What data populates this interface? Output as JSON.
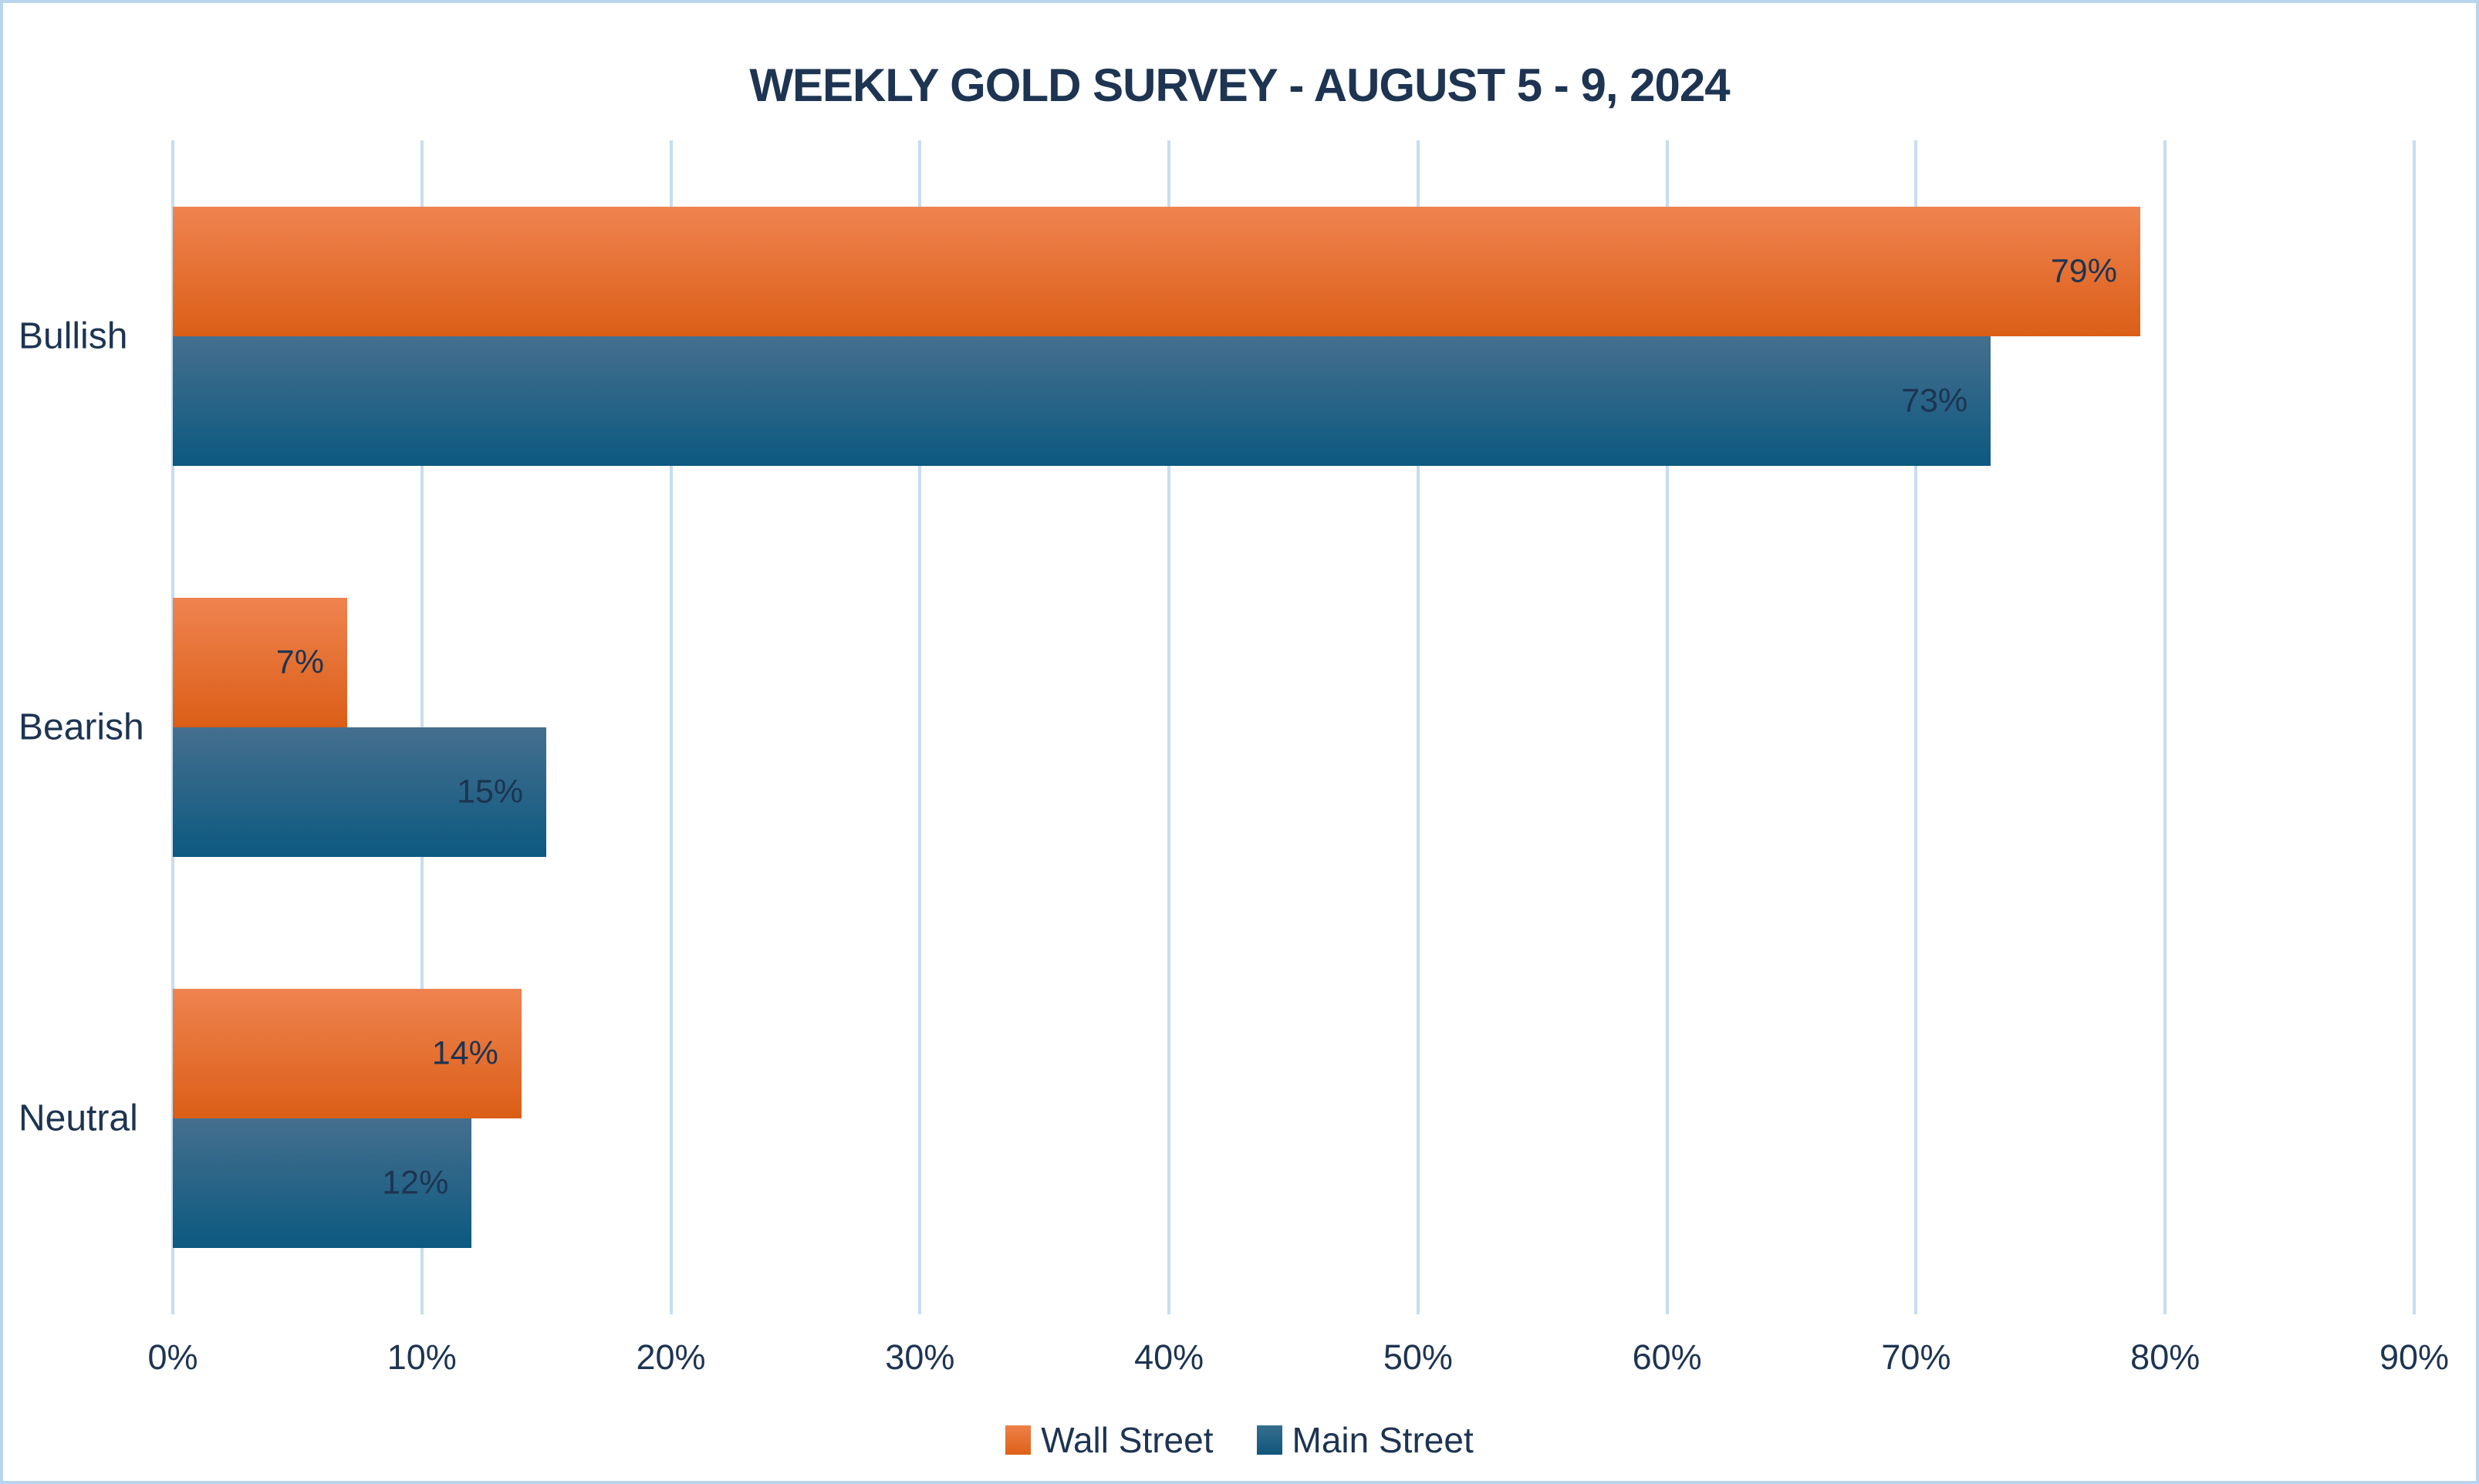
{
  "page": {
    "background": "#ffffff",
    "border_color": "#b9d5ee",
    "text_color": "#1d3452",
    "gridline_color": "#c7ddf1"
  },
  "chart_data": {
    "type": "bar",
    "orientation": "horizontal",
    "title": "WEEKLY GOLD SURVEY - AUGUST 5 - 9, 2024",
    "categories": [
      "Bullish",
      "Bearish",
      "Neutral"
    ],
    "series": [
      {
        "name": "Wall Street",
        "color_top": "#ef8350",
        "color_bottom": "#db5e16",
        "values": [
          79,
          7,
          14
        ],
        "labels": [
          "79%",
          "7%",
          "14%"
        ]
      },
      {
        "name": "Main Street",
        "color_top": "#456f8e",
        "color_bottom": "#0c5980",
        "values": [
          73,
          15,
          12
        ],
        "labels": [
          "73%",
          "15%",
          "12%"
        ]
      }
    ],
    "xlabel": "",
    "ylabel": "",
    "xlim": [
      0,
      90
    ],
    "x_ticks": [
      "0%",
      "10%",
      "20%",
      "30%",
      "40%",
      "50%",
      "60%",
      "70%",
      "80%",
      "90%"
    ],
    "grid": true,
    "legend_position": "bottom"
  }
}
